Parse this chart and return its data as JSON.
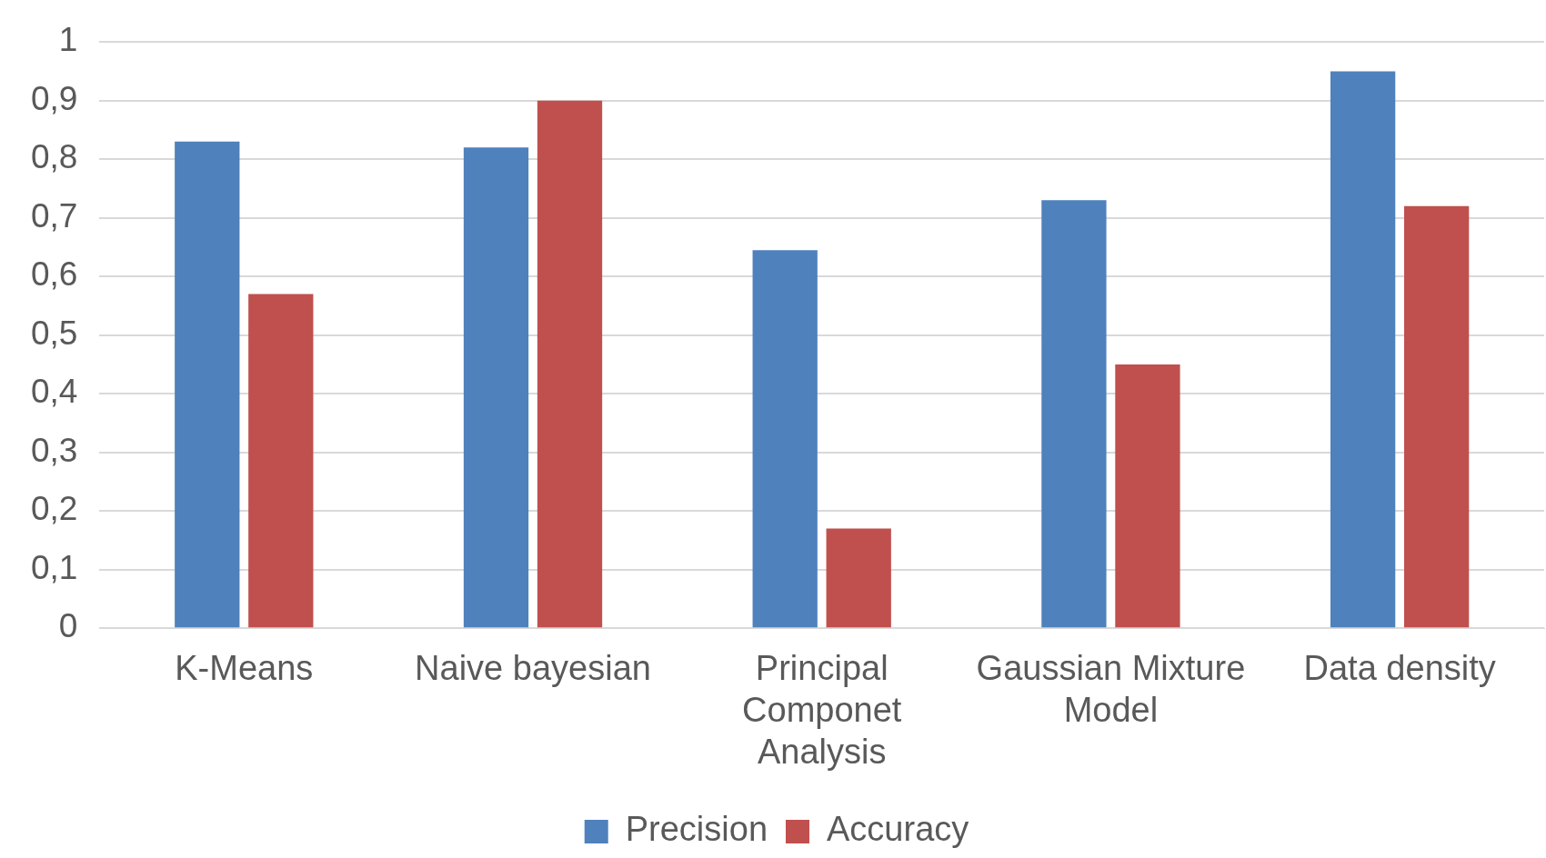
{
  "chart_data": {
    "type": "bar",
    "categories": [
      "K-Means",
      "Naive bayesian",
      "Principal Componet Analysis",
      "Gaussian Mixture Model",
      "Data density"
    ],
    "series": [
      {
        "name": "Precision",
        "color": "#4f81bd",
        "values": [
          0.83,
          0.82,
          0.645,
          0.73,
          0.95
        ]
      },
      {
        "name": "Accuracy",
        "color": "#c0504d",
        "values": [
          0.57,
          0.9,
          0.17,
          0.45,
          0.72
        ]
      }
    ],
    "ylim": [
      0,
      1
    ],
    "yticks": [
      0,
      {
        "value": 0.1,
        "label": "0,1"
      },
      {
        "value": 0.2,
        "label": "0,2"
      },
      {
        "value": 0.3,
        "label": "0,3"
      },
      {
        "value": 0.4,
        "label": "0,4"
      },
      {
        "value": 0.5,
        "label": "0,5"
      },
      {
        "value": 0.6,
        "label": "0,6"
      },
      {
        "value": 0.7,
        "label": "0,7"
      },
      {
        "value": 0.8,
        "label": "0,8"
      },
      {
        "value": 0.9,
        "label": "0,9"
      },
      1
    ],
    "grid": "y",
    "legend": "bottom"
  }
}
